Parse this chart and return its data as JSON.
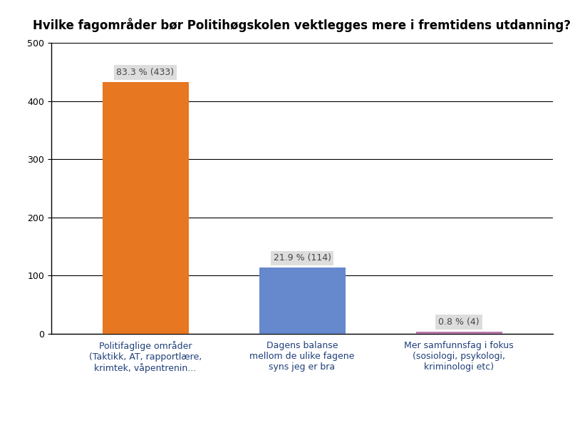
{
  "title": "Hvilke fagområder bør Politihøgskolen vektlegges mere i fremtidens utdanning?",
  "categories": [
    "Politifaglige områder\n(Taktikk, AT, rapportlære,\nkrimtek, våpentrenin...",
    "Dagens balanse\nmellom de ulike fagene\nsyns jeg er bra",
    "Mer samfunnsfag i fokus\n(sosiologi, psykologi,\nkriminologi etc)"
  ],
  "values": [
    433,
    114,
    4
  ],
  "labels": [
    "83.3 % (433)",
    "21.9 % (114)",
    "0.8 % (4)"
  ],
  "colors": [
    "#E87722",
    "#6688CC",
    "#BB77AA"
  ],
  "ylim": [
    0,
    500
  ],
  "yticks": [
    0,
    100,
    200,
    300,
    400,
    500
  ],
  "title_color": "#000000",
  "title_fontsize": 12,
  "label_fontsize": 9,
  "tick_label_fontsize": 9,
  "xtick_color": "#1F3F7A",
  "background_color": "#FFFFFF",
  "label_box_color": "#DDDDDD",
  "label_text_color": "#444444",
  "grid_color": "#000000",
  "grid_linewidth": 0.8
}
